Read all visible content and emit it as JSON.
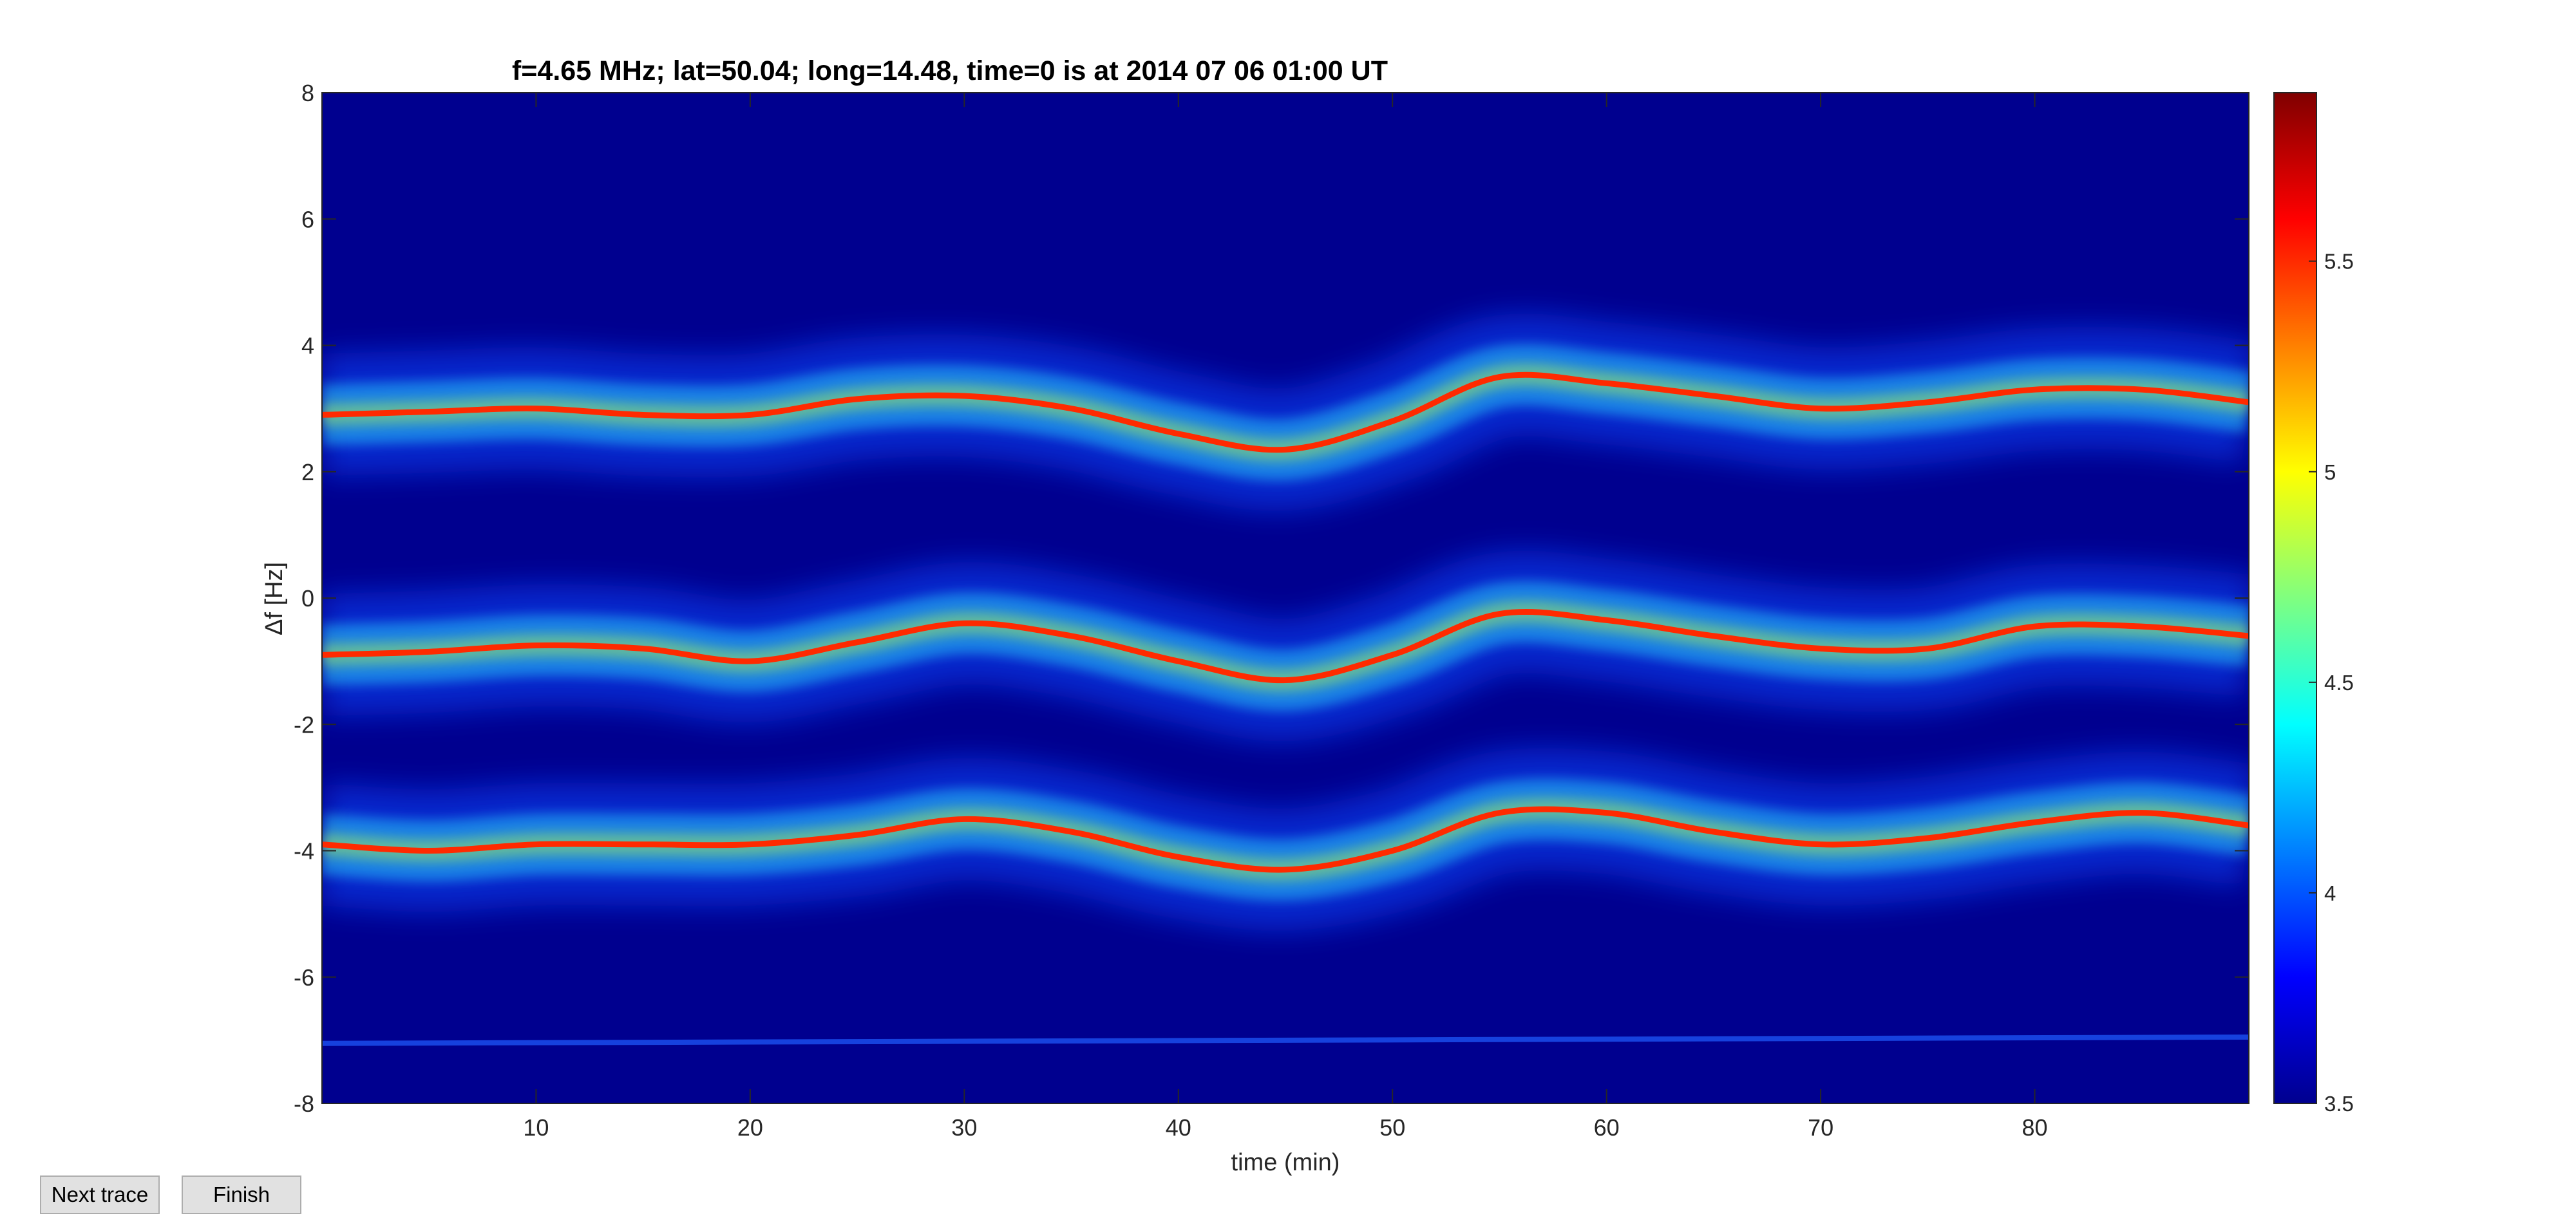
{
  "buttons": {
    "next_trace": "Next trace",
    "finish": "Finish"
  },
  "chart_data": {
    "type": "heatmap",
    "title": "f=4.65 MHz;  lat=50.04; long=14.48, time=0 is at 2014 07 06 01:00 UT",
    "xlabel": "time (min)",
    "ylabel": "Δf [Hz]",
    "xlim": [
      0,
      90
    ],
    "ylim": [
      -8,
      8
    ],
    "x_ticks": [
      10,
      20,
      30,
      40,
      50,
      60,
      70,
      80
    ],
    "y_ticks": [
      8,
      6,
      4,
      2,
      0,
      -2,
      -4,
      -6,
      -8
    ],
    "colorbar": {
      "clim": [
        3.5,
        5.9
      ],
      "ticks": [
        3.5,
        4,
        4.5,
        5,
        5.5
      ],
      "colormap": "jet"
    },
    "background_color": "#00008f",
    "grid": false,
    "traces": [
      {
        "x": [
          0,
          5,
          10,
          15,
          20,
          25,
          30,
          35,
          40,
          45,
          50,
          55,
          60,
          65,
          70,
          75,
          80,
          85,
          90
        ],
        "y": [
          2.9,
          2.95,
          3.0,
          2.9,
          2.9,
          3.15,
          3.2,
          3.0,
          2.6,
          2.35,
          2.8,
          3.5,
          3.4,
          3.2,
          3.0,
          3.1,
          3.3,
          3.3,
          3.1
        ]
      },
      {
        "x": [
          0,
          5,
          10,
          15,
          20,
          25,
          30,
          35,
          40,
          45,
          50,
          55,
          60,
          65,
          70,
          75,
          80,
          85,
          90
        ],
        "y": [
          -0.9,
          -0.85,
          -0.75,
          -0.8,
          -1.0,
          -0.7,
          -0.4,
          -0.6,
          -1.0,
          -1.3,
          -0.9,
          -0.25,
          -0.35,
          -0.6,
          -0.8,
          -0.8,
          -0.45,
          -0.45,
          -0.6
        ]
      },
      {
        "x": [
          0,
          5,
          10,
          15,
          20,
          25,
          30,
          35,
          40,
          45,
          50,
          55,
          60,
          65,
          70,
          75,
          80,
          85,
          90
        ],
        "y": [
          -3.9,
          -4.0,
          -3.9,
          -3.9,
          -3.9,
          -3.75,
          -3.5,
          -3.7,
          -4.1,
          -4.3,
          -4.0,
          -3.4,
          -3.4,
          -3.7,
          -3.9,
          -3.8,
          -3.55,
          -3.4,
          -3.6
        ]
      },
      {
        "x": [
          0,
          90
        ],
        "y": [
          -7.05,
          -6.95
        ]
      }
    ]
  }
}
